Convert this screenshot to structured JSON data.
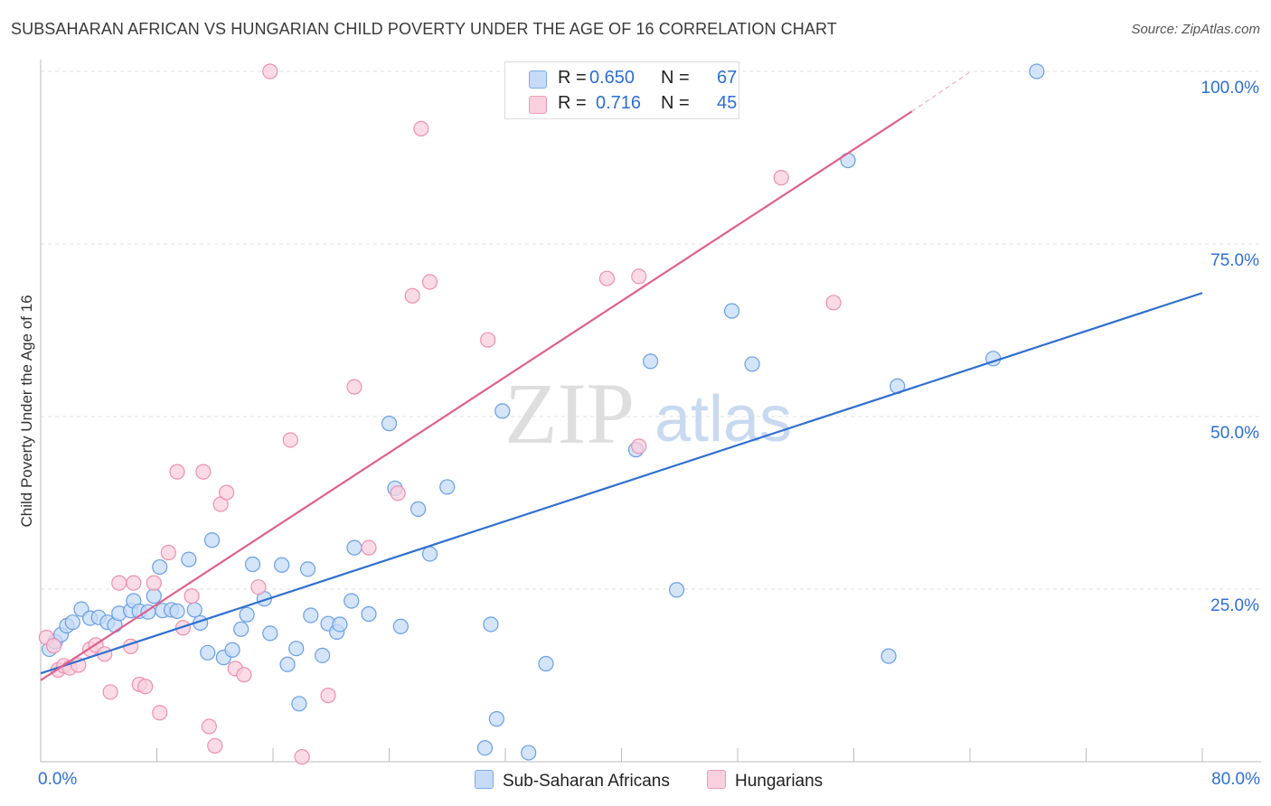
{
  "header": {
    "title": "SUBSAHARAN AFRICAN VS HUNGARIAN CHILD POVERTY UNDER THE AGE OF 16 CORRELATION CHART",
    "source": "Source: ZipAtlas.com"
  },
  "watermark": {
    "zip": "ZIP",
    "atlas": "atlas"
  },
  "legend": {
    "rows": [
      {
        "r_label": "R =",
        "r_value": "0.650",
        "n_label": "N =",
        "n_value": "67",
        "color": "#a9c8f2"
      },
      {
        "r_label": "R =",
        "r_value": "0.716",
        "n_label": "N =",
        "n_value": "45",
        "color": "#f7b8cb"
      }
    ]
  },
  "bottom_legend": {
    "items": [
      {
        "label": "Sub-Saharan Africans",
        "color": "#a9c8f2"
      },
      {
        "label": "Hungarians",
        "color": "#f7b8cb"
      }
    ]
  },
  "chart_data": {
    "type": "scatter",
    "title": "SUBSAHARAN AFRICAN VS HUNGARIAN CHILD POVERTY UNDER THE AGE OF 16 CORRELATION CHART",
    "xlabel": "",
    "ylabel": "Child Poverty Under the Age of 16",
    "xlim": [
      0,
      80
    ],
    "ylim": [
      0,
      100
    ],
    "x_tick_labels": [
      {
        "value": 0,
        "label": "0.0%"
      },
      {
        "value": 80,
        "label": "80.0%"
      }
    ],
    "y_tick_labels": [
      {
        "value": 25,
        "label": "25.0%"
      },
      {
        "value": 50,
        "label": "50.0%"
      },
      {
        "value": 75,
        "label": "75.0%"
      },
      {
        "value": 100,
        "label": "100.0%"
      }
    ],
    "x_minor_ticks": [
      8,
      16,
      24,
      32,
      40,
      48,
      56,
      64,
      72,
      80
    ],
    "grid": true,
    "series": [
      {
        "name": "Sub-Saharan Africans",
        "color": "#6a9fe6",
        "fill": "#c6dbf7",
        "trend": {
          "x": [
            0,
            80
          ],
          "y": [
            12.8,
            67.9
          ],
          "color": "#2f6fd0"
        },
        "points": [
          [
            0.6,
            16.3
          ],
          [
            1.0,
            17.4
          ],
          [
            1.4,
            18.4
          ],
          [
            1.8,
            19.7
          ],
          [
            2.2,
            20.2
          ],
          [
            2.8,
            22.1
          ],
          [
            3.4,
            20.8
          ],
          [
            4.0,
            20.9
          ],
          [
            4.6,
            20.2
          ],
          [
            5.1,
            19.8
          ],
          [
            5.4,
            21.5
          ],
          [
            6.2,
            21.9
          ],
          [
            6.4,
            23.3
          ],
          [
            6.8,
            21.8
          ],
          [
            7.4,
            21.7
          ],
          [
            7.8,
            24.0
          ],
          [
            8.2,
            28.2
          ],
          [
            8.4,
            21.9
          ],
          [
            9.0,
            22.0
          ],
          [
            9.4,
            21.8
          ],
          [
            10.2,
            29.3
          ],
          [
            10.6,
            22.0
          ],
          [
            11.0,
            20.1
          ],
          [
            11.8,
            32.1
          ],
          [
            11.5,
            15.8
          ],
          [
            12.6,
            15.1
          ],
          [
            13.2,
            16.2
          ],
          [
            13.8,
            19.2
          ],
          [
            14.2,
            21.3
          ],
          [
            14.6,
            28.6
          ],
          [
            15.4,
            23.6
          ],
          [
            15.8,
            18.6
          ],
          [
            16.6,
            28.5
          ],
          [
            17.0,
            14.1
          ],
          [
            17.6,
            16.4
          ],
          [
            17.8,
            8.4
          ],
          [
            18.4,
            27.9
          ],
          [
            18.6,
            21.2
          ],
          [
            19.4,
            15.4
          ],
          [
            19.8,
            20.0
          ],
          [
            20.4,
            18.8
          ],
          [
            20.6,
            19.9
          ],
          [
            21.4,
            23.3
          ],
          [
            21.6,
            31.0
          ],
          [
            22.6,
            21.4
          ],
          [
            24.0,
            49.0
          ],
          [
            24.4,
            39.6
          ],
          [
            24.8,
            19.6
          ],
          [
            26.0,
            36.6
          ],
          [
            26.8,
            30.1
          ],
          [
            28.0,
            39.8
          ],
          [
            30.6,
            2.0
          ],
          [
            31.0,
            19.9
          ],
          [
            31.4,
            6.2
          ],
          [
            31.8,
            50.8
          ],
          [
            33.6,
            1.3
          ],
          [
            34.8,
            14.2
          ],
          [
            41.0,
            45.2
          ],
          [
            42.0,
            58.0
          ],
          [
            43.8,
            24.9
          ],
          [
            47.6,
            65.3
          ],
          [
            49.0,
            57.6
          ],
          [
            55.6,
            87.1
          ],
          [
            58.4,
            15.3
          ],
          [
            59.0,
            54.4
          ],
          [
            65.6,
            58.4
          ],
          [
            68.6,
            100.0
          ]
        ]
      },
      {
        "name": "Hungarians",
        "color": "#ee8fb0",
        "fill": "#f9d0de",
        "trend": {
          "x": [
            0,
            60
          ],
          "y": [
            11.8,
            94.2
          ],
          "dash_x": [
            60,
            64
          ],
          "dash_y": [
            94.2,
            99.9
          ],
          "color": "#e0608c"
        },
        "points": [
          [
            0.4,
            18.0
          ],
          [
            0.9,
            16.8
          ],
          [
            1.2,
            13.3
          ],
          [
            1.6,
            13.9
          ],
          [
            2.0,
            13.6
          ],
          [
            2.6,
            14.0
          ],
          [
            3.4,
            16.3
          ],
          [
            3.8,
            16.9
          ],
          [
            4.4,
            15.6
          ],
          [
            4.8,
            10.1
          ],
          [
            5.4,
            25.9
          ],
          [
            6.2,
            16.7
          ],
          [
            6.4,
            25.9
          ],
          [
            6.8,
            11.2
          ],
          [
            7.2,
            10.9
          ],
          [
            7.8,
            25.9
          ],
          [
            8.2,
            7.1
          ],
          [
            8.8,
            30.3
          ],
          [
            9.4,
            42.0
          ],
          [
            9.8,
            19.4
          ],
          [
            10.4,
            24.0
          ],
          [
            11.2,
            42.0
          ],
          [
            11.6,
            5.1
          ],
          [
            12.0,
            2.3
          ],
          [
            12.4,
            37.3
          ],
          [
            12.8,
            39.0
          ],
          [
            13.4,
            13.5
          ],
          [
            14.0,
            12.6
          ],
          [
            15.0,
            25.3
          ],
          [
            15.8,
            100.0
          ],
          [
            17.2,
            46.6
          ],
          [
            18.0,
            0.7
          ],
          [
            19.8,
            9.6
          ],
          [
            21.6,
            54.3
          ],
          [
            22.6,
            31.0
          ],
          [
            24.6,
            38.9
          ],
          [
            25.6,
            67.5
          ],
          [
            26.2,
            91.7
          ],
          [
            26.8,
            69.5
          ],
          [
            30.8,
            61.1
          ],
          [
            39.0,
            70.0
          ],
          [
            41.2,
            45.7
          ],
          [
            41.2,
            70.3
          ],
          [
            51.0,
            84.6
          ],
          [
            54.6,
            66.5
          ]
        ]
      }
    ]
  }
}
